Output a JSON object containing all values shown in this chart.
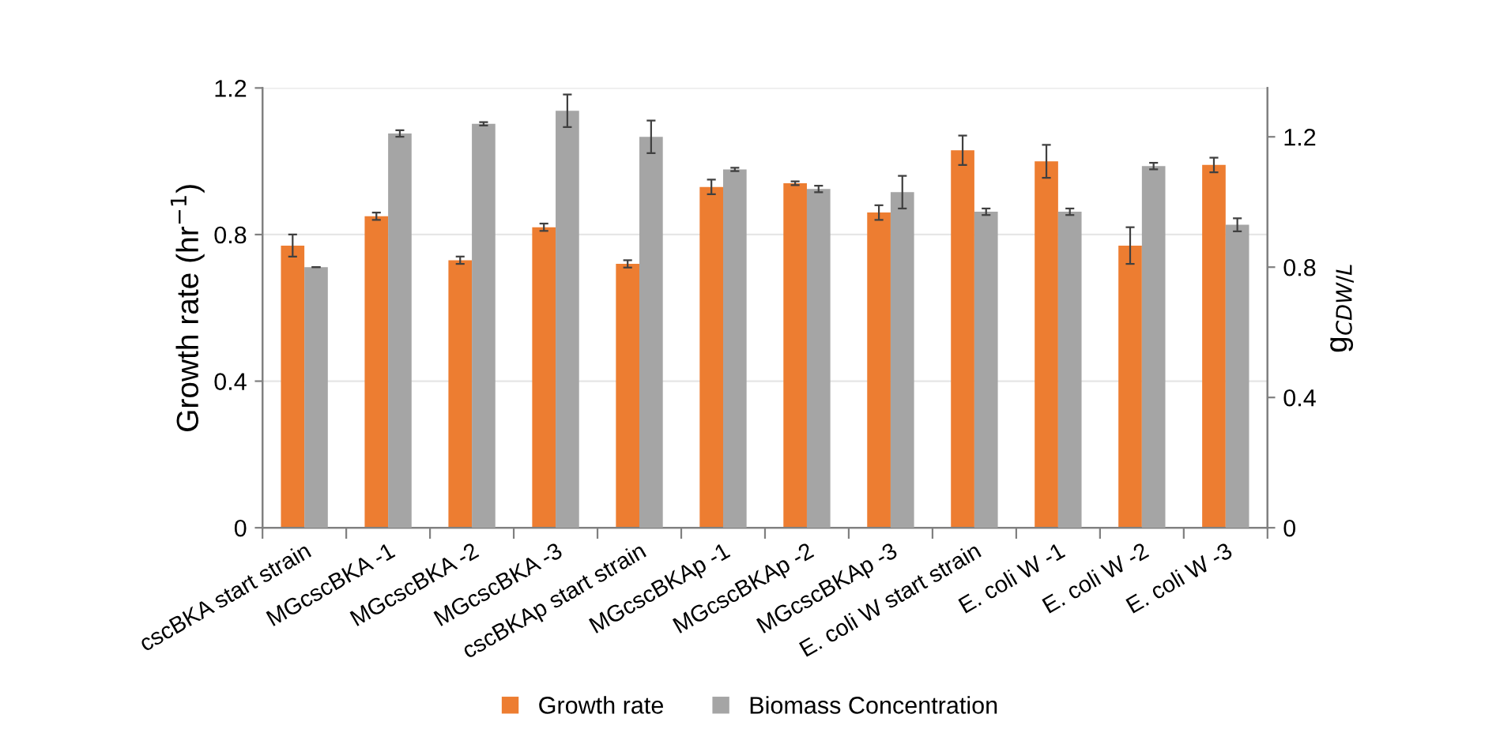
{
  "chart_data": {
    "type": "bar",
    "categories": [
      "cscBKA start strain",
      "MGcscBKA -1",
      "MGcscBKA -2",
      "MGcscBKA -3",
      "cscBKAp start strain",
      "MGcscBKAp -1",
      "MGcscBKAp -2",
      "MGcscBKAp -3",
      "E. coli W start strain",
      "E. coli W -1",
      "E. coli W -2",
      "E. coli W -3"
    ],
    "series": [
      {
        "name": "Growth rate",
        "color": "#ed7d31",
        "values": [
          0.77,
          0.85,
          0.73,
          0.82,
          0.72,
          0.93,
          0.94,
          0.86,
          1.03,
          1.0,
          0.77,
          0.99
        ],
        "errors": [
          0.03,
          0.01,
          0.01,
          0.01,
          0.01,
          0.02,
          0.005,
          0.02,
          0.04,
          0.045,
          0.05,
          0.02
        ]
      },
      {
        "name": "Biomass Concentration",
        "color": "#a5a5a5",
        "axis": "y2",
        "values": [
          0.8,
          1.21,
          1.24,
          1.28,
          1.2,
          1.1,
          1.04,
          1.03,
          0.97,
          0.97,
          1.11,
          0.93
        ],
        "errors": [
          null,
          0.01,
          0.005,
          0.05,
          0.05,
          0.005,
          0.01,
          0.05,
          0.01,
          0.01,
          0.01,
          0.02
        ]
      }
    ],
    "ylabel": "Growth rate (hr$^{−1}$)",
    "y2label": "g$_{CDW/L}$",
    "ylim": [
      0,
      1.2
    ],
    "yticks": [
      0,
      0.4,
      0.8,
      1.2
    ],
    "y2lim": [
      0,
      1.35
    ],
    "y2ticks": [
      0,
      0.4,
      0.8,
      1.2
    ],
    "grid": "y",
    "legend": "bottom"
  }
}
